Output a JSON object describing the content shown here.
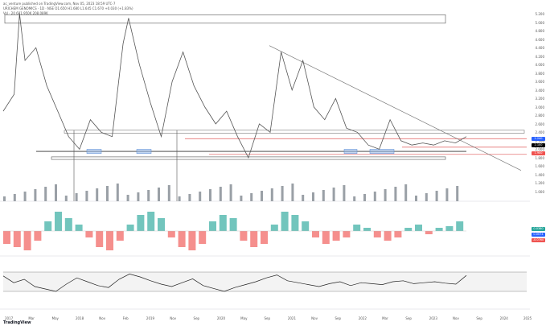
{
  "header": {
    "line1": "ac_venture published on TradingView.com, Nov 05, 2023 18:59 UTC-7",
    "line2": "URICHEM GENOMICS · 1D · NSE  O1.650  H1.680  L1.645  C1.670  +0.030 (+1.83%)",
    "line3": "Vol · 20  681.950K  208.089K"
  },
  "watermark": "TradingView",
  "colors": {
    "price": "#555555",
    "resistance": "#e57373",
    "support_zone": "#90b4e8",
    "macd_up": "#26a69a",
    "macd_down": "#ef5350",
    "rsi": "#222222",
    "trendline": "#777777"
  },
  "side_badges": [
    {
      "text": "2.240",
      "color": "#2962ff"
    },
    {
      "text": "2.100",
      "color": "#000000"
    },
    {
      "text": "1.900",
      "color": "#ef5350"
    }
  ],
  "chart_data": {
    "type": "line",
    "title": "",
    "x_labels": [
      "2017",
      "Mar",
      "May",
      "2018",
      "Nov",
      "Feb",
      "2019",
      "Nov",
      "Sep",
      "2020",
      "May",
      "Sep",
      "2021",
      "Nov",
      "Sep",
      "2022",
      "Mar",
      "Sep",
      "2023",
      "Nov",
      "Sep",
      "2024",
      "2025"
    ],
    "price_axis": [
      "5.200",
      "5.000",
      "4.800",
      "4.600",
      "4.400",
      "4.200",
      "4.000",
      "3.800",
      "3.600",
      "3.400",
      "3.200",
      "3.000",
      "2.800",
      "2.600",
      "2.400",
      "2.200",
      "2.000",
      "1.800",
      "1.600",
      "1.400",
      "1.200",
      "1.000"
    ],
    "price_ylim": [
      1.0,
      5.3
    ],
    "close": [
      {
        "t": 0,
        "v": 2.9
      },
      {
        "t": 2,
        "v": 3.3
      },
      {
        "t": 3,
        "v": 5.2
      },
      {
        "t": 4,
        "v": 4.1
      },
      {
        "t": 6,
        "v": 4.4
      },
      {
        "t": 8,
        "v": 3.5
      },
      {
        "t": 10,
        "v": 2.9
      },
      {
        "t": 12,
        "v": 2.3
      },
      {
        "t": 14,
        "v": 2.0
      },
      {
        "t": 16,
        "v": 2.7
      },
      {
        "t": 18,
        "v": 2.4
      },
      {
        "t": 20,
        "v": 2.3
      },
      {
        "t": 22,
        "v": 4.5
      },
      {
        "t": 23,
        "v": 5.1
      },
      {
        "t": 25,
        "v": 4.0
      },
      {
        "t": 27,
        "v": 3.1
      },
      {
        "t": 29,
        "v": 2.3
      },
      {
        "t": 31,
        "v": 3.6
      },
      {
        "t": 33,
        "v": 4.3
      },
      {
        "t": 35,
        "v": 3.5
      },
      {
        "t": 37,
        "v": 3.0
      },
      {
        "t": 39,
        "v": 2.6
      },
      {
        "t": 41,
        "v": 2.9
      },
      {
        "t": 43,
        "v": 2.3
      },
      {
        "t": 45,
        "v": 1.8
      },
      {
        "t": 47,
        "v": 2.6
      },
      {
        "t": 49,
        "v": 2.4
      },
      {
        "t": 51,
        "v": 4.3
      },
      {
        "t": 53,
        "v": 3.4
      },
      {
        "t": 55,
        "v": 4.1
      },
      {
        "t": 57,
        "v": 3.0
      },
      {
        "t": 59,
        "v": 2.7
      },
      {
        "t": 61,
        "v": 3.2
      },
      {
        "t": 63,
        "v": 2.5
      },
      {
        "t": 65,
        "v": 2.4
      },
      {
        "t": 67,
        "v": 2.1
      },
      {
        "t": 69,
        "v": 2.0
      },
      {
        "t": 71,
        "v": 2.7
      },
      {
        "t": 73,
        "v": 2.2
      },
      {
        "t": 75,
        "v": 2.1
      },
      {
        "t": 77,
        "v": 2.15
      },
      {
        "t": 79,
        "v": 2.1
      },
      {
        "t": 81,
        "v": 2.2
      },
      {
        "t": 83,
        "v": 2.15
      },
      {
        "t": 85,
        "v": 2.3
      }
    ],
    "rsi": {
      "ylim": [
        0,
        100
      ],
      "levels": [
        70,
        30
      ],
      "values": [
        62,
        48,
        55,
        40,
        35,
        30,
        45,
        58,
        50,
        42,
        38,
        55,
        66,
        60,
        52,
        45,
        40,
        48,
        56,
        42,
        36,
        30,
        38,
        44,
        50,
        58,
        64,
        52,
        48,
        44,
        40,
        46,
        50,
        42,
        48,
        46,
        44,
        50,
        52,
        46,
        48,
        50,
        47,
        45,
        63
      ]
    },
    "macd_hist": [
      -0.4,
      -0.5,
      -0.6,
      -0.3,
      0.3,
      0.6,
      0.4,
      0.2,
      -0.2,
      -0.5,
      -0.6,
      -0.3,
      0.2,
      0.5,
      0.6,
      0.4,
      -0.2,
      -0.5,
      -0.6,
      -0.4,
      0.3,
      0.5,
      0.4,
      -0.3,
      -0.5,
      -0.4,
      0.2,
      0.6,
      0.5,
      0.3,
      -0.2,
      -0.4,
      -0.3,
      -0.2,
      0.2,
      0.1,
      -0.2,
      -0.3,
      -0.2,
      0.1,
      0.2,
      -0.1,
      0.1,
      0.15,
      0.3
    ],
    "macd_right_labels": [
      "0.0360",
      "0.0074",
      "-0.0760"
    ]
  }
}
